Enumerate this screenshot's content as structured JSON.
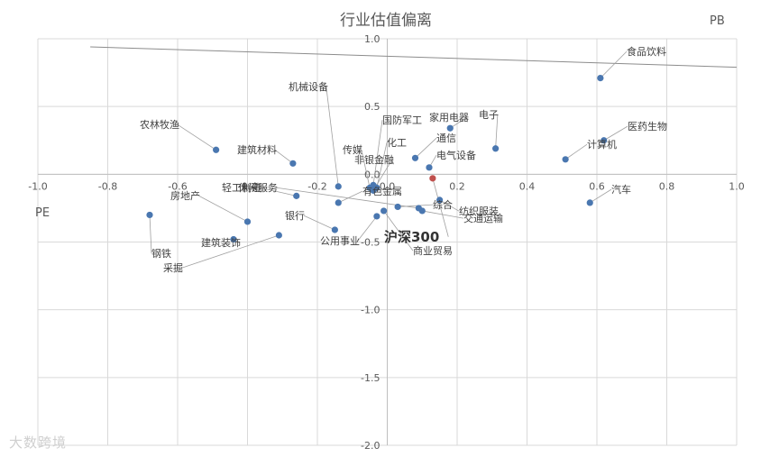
{
  "chart_data": {
    "type": "scatter",
    "title": "行业估值偏离",
    "xlabel": "PE",
    "ylabel": "PB",
    "xlim": [
      -1.0,
      1.0
    ],
    "ylim": [
      -2.0,
      1.0
    ],
    "x_ticks": [
      "-1.0",
      "-0.8",
      "-0.6",
      "-0.4",
      "-0.2",
      "0.0",
      "0.2",
      "0.4",
      "0.6",
      "0.8",
      "1.0"
    ],
    "y_ticks": [
      "1.0",
      "0.5",
      "0.0",
      "-0.5",
      "-1.0",
      "-1.5",
      "-2.0"
    ],
    "grid": true,
    "colors": {
      "point": "#4a77b0",
      "highlight": "#c0504d",
      "grid": "#d9d9d9",
      "leader": "#a0a0a0"
    },
    "trend_line": {
      "x": [
        -0.85,
        1.0
      ],
      "y": [
        0.94,
        0.79
      ]
    },
    "points": [
      {
        "name": "食品饮料",
        "x": 0.61,
        "y": 0.71
      },
      {
        "name": "医药生物",
        "x": 0.62,
        "y": 0.25
      },
      {
        "name": "计算机",
        "x": 0.51,
        "y": 0.11
      },
      {
        "name": "汽车",
        "x": 0.58,
        "y": -0.21
      },
      {
        "name": "电子",
        "x": 0.31,
        "y": 0.19
      },
      {
        "name": "家用电器",
        "x": 0.18,
        "y": 0.34
      },
      {
        "name": "通信",
        "x": 0.08,
        "y": 0.12
      },
      {
        "name": "电气设备",
        "x": 0.12,
        "y": 0.05
      },
      {
        "name": "农林牧渔",
        "x": -0.49,
        "y": 0.18
      },
      {
        "name": "建筑材料",
        "x": -0.27,
        "y": 0.08
      },
      {
        "name": "机械设备",
        "x": -0.14,
        "y": -0.09
      },
      {
        "name": "国防军工",
        "x": -0.04,
        "y": -0.08
      },
      {
        "name": "传媒",
        "x": -0.05,
        "y": -0.1
      },
      {
        "name": "化工",
        "x": -0.03,
        "y": -0.1
      },
      {
        "name": "非银金融",
        "x": -0.04,
        "y": -0.12
      },
      {
        "name": "有色金属",
        "x": -0.14,
        "y": -0.21
      },
      {
        "name": "轻工制造",
        "x": -0.26,
        "y": -0.16
      },
      {
        "name": "房地产",
        "x": -0.4,
        "y": -0.35
      },
      {
        "name": "钢铁",
        "x": -0.68,
        "y": -0.3
      },
      {
        "name": "建筑装饰",
        "x": -0.44,
        "y": -0.48
      },
      {
        "name": "采掘",
        "x": -0.31,
        "y": -0.45
      },
      {
        "name": "银行",
        "x": -0.15,
        "y": -0.41
      },
      {
        "name": "公用事业",
        "x": -0.03,
        "y": -0.31
      },
      {
        "name": "商业贸易",
        "x": -0.01,
        "y": -0.27
      },
      {
        "name": "综合",
        "x": 0.03,
        "y": -0.24
      },
      {
        "name": "纺织服装",
        "x": 0.15,
        "y": -0.19
      },
      {
        "name": "交通运输",
        "x": 0.1,
        "y": -0.27
      },
      {
        "name": "休闲服务",
        "x": 0.09,
        "y": -0.25
      },
      {
        "name": "沪深300",
        "x": 0.13,
        "y": -0.03,
        "highlight": true
      }
    ]
  },
  "watermark": "大数跨境"
}
